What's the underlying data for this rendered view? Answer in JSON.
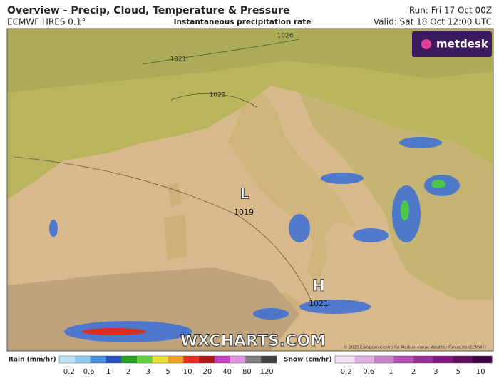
{
  "header": {
    "title": "Overview - Precip, Cloud, Temperature & Pressure",
    "model": "ECMWF HRES 0.1°",
    "product": "Instantaneous precipitation rate",
    "run": "Run: Fri 17 Oct 00Z",
    "valid": "Valid: Sat 18 Oct 12:00 UTC"
  },
  "logo": "metdesk",
  "isobars": [
    "1026",
    "1021",
    "1022"
  ],
  "centers": [
    {
      "symbol": "L",
      "value": "1019"
    },
    {
      "symbol": "H",
      "value": "1021"
    }
  ],
  "watermark": "WXCHARTS.COM",
  "copyright": "© 2025 European Centre for Medium-range Weather Forecasts (ECMWF)",
  "legend": {
    "rain": {
      "title": "Rain (mm/hr)",
      "ticks": [
        0.2,
        0.6,
        1,
        2,
        3,
        5,
        10,
        20,
        40,
        80,
        120
      ]
    },
    "snow": {
      "title": "Snow (cm/hr)",
      "ticks": [
        0.2,
        0.6,
        1,
        2,
        3,
        5,
        10
      ]
    }
  }
}
